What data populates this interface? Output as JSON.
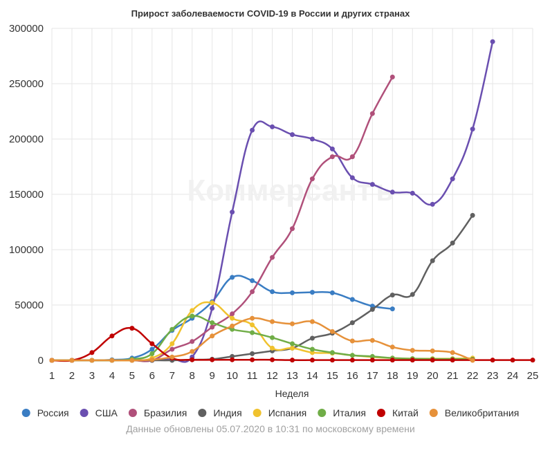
{
  "chart_data": {
    "type": "line",
    "title": "Прирост заболеваемости COVID-19 в России и других странах",
    "xlabel": "Неделя",
    "ylabel": "",
    "x": [
      1,
      2,
      3,
      4,
      5,
      6,
      7,
      8,
      9,
      10,
      11,
      12,
      13,
      14,
      15,
      16,
      17,
      18,
      19,
      20,
      21,
      22,
      23,
      24,
      25
    ],
    "xlim": [
      1,
      25
    ],
    "ylim": [
      0,
      300000
    ],
    "yticks": [
      0,
      50000,
      100000,
      150000,
      200000,
      250000,
      300000
    ],
    "grid": true,
    "legend_position": "bottom",
    "watermark": "Коммерсантъ",
    "footer": "Данные обновлены 05.07.2020 в 10:31 по московскому времени",
    "series": [
      {
        "name": "Россия",
        "color": "#3a7dc3",
        "x": [
          1,
          2,
          3,
          4,
          5,
          6,
          7,
          8,
          9,
          10,
          11,
          12,
          13,
          14,
          15,
          16,
          17,
          18
        ],
        "values": [
          0,
          0,
          0,
          500,
          2000,
          10000,
          27000,
          38000,
          53000,
          75000,
          72000,
          62000,
          61000,
          61500,
          61000,
          55000,
          49000,
          46500
        ]
      },
      {
        "name": "США",
        "color": "#6a4fb0",
        "x": [
          1,
          2,
          3,
          4,
          5,
          6,
          7,
          8,
          9,
          10,
          11,
          12,
          13,
          14,
          15,
          16,
          17,
          18,
          19,
          20,
          21,
          22,
          23
        ],
        "values": [
          0,
          0,
          0,
          0,
          0,
          0,
          1000,
          3000,
          47000,
          134000,
          208000,
          211000,
          204000,
          200000,
          191000,
          165000,
          159000,
          152000,
          151000,
          141000,
          164000,
          209000,
          288000
        ]
      },
      {
        "name": "Бразилия",
        "color": "#b0507a",
        "x": [
          1,
          2,
          3,
          4,
          5,
          6,
          7,
          8,
          9,
          10,
          11,
          12,
          13,
          14,
          15,
          16,
          17,
          18
        ],
        "values": [
          0,
          0,
          0,
          0,
          0,
          0,
          10000,
          17000,
          30000,
          42000,
          62000,
          93000,
          119000,
          164000,
          184000,
          184000,
          223000,
          256000
        ]
      },
      {
        "name": "Индия",
        "color": "#606060",
        "x": [
          1,
          2,
          3,
          4,
          5,
          6,
          7,
          8,
          9,
          10,
          11,
          12,
          13,
          14,
          15,
          16,
          17,
          18,
          19,
          20,
          21,
          22
        ],
        "values": [
          0,
          0,
          0,
          0,
          0,
          0,
          0,
          500,
          1000,
          3500,
          6000,
          8500,
          11000,
          20000,
          24500,
          34000,
          46000,
          59000,
          59500,
          90000,
          106000,
          131000
        ]
      },
      {
        "name": "Испания",
        "color": "#f0c22e",
        "x": [
          1,
          2,
          3,
          4,
          5,
          6,
          7,
          8,
          9,
          10,
          11,
          12,
          13,
          14,
          15,
          16,
          17,
          18,
          19,
          20,
          21,
          22
        ],
        "values": [
          0,
          0,
          0,
          0,
          0,
          2000,
          15000,
          45000,
          52000,
          38000,
          32000,
          11000,
          11000,
          7000,
          6500,
          4500,
          3000,
          2000,
          1500,
          1500,
          1500,
          2000
        ]
      },
      {
        "name": "Италия",
        "color": "#70ad47",
        "x": [
          1,
          2,
          3,
          4,
          5,
          6,
          7,
          8,
          9,
          10,
          11,
          12,
          13,
          14,
          15,
          16,
          17,
          18,
          19,
          20,
          21,
          22
        ],
        "values": [
          0,
          0,
          0,
          0,
          1000,
          6000,
          28000,
          40000,
          34000,
          28000,
          25000,
          20500,
          15000,
          10000,
          7000,
          4500,
          3500,
          2000,
          1500,
          1200,
          1200,
          1000
        ]
      },
      {
        "name": "Китай",
        "color": "#c00000",
        "x": [
          1,
          2,
          3,
          4,
          5,
          6,
          7,
          8,
          9,
          10,
          11,
          12,
          13,
          14,
          15,
          16,
          17,
          18,
          19,
          20,
          21,
          22,
          23,
          24,
          25
        ],
        "values": [
          0,
          0,
          7000,
          22000,
          29000,
          15000,
          2000,
          500,
          500,
          500,
          500,
          500,
          200,
          200,
          200,
          200,
          200,
          200,
          200,
          200,
          200,
          200,
          200,
          200,
          200
        ]
      },
      {
        "name": "Великобритания",
        "color": "#e6913a",
        "x": [
          1,
          2,
          3,
          4,
          5,
          6,
          7,
          8,
          9,
          10,
          11,
          12,
          13,
          14,
          15,
          16,
          17,
          18,
          19,
          20,
          21,
          22
        ],
        "values": [
          0,
          0,
          0,
          0,
          0,
          500,
          3000,
          8000,
          22000,
          31000,
          38000,
          35000,
          33000,
          35000,
          26000,
          17500,
          18000,
          12000,
          9000,
          8500,
          7000,
          0
        ]
      }
    ]
  }
}
